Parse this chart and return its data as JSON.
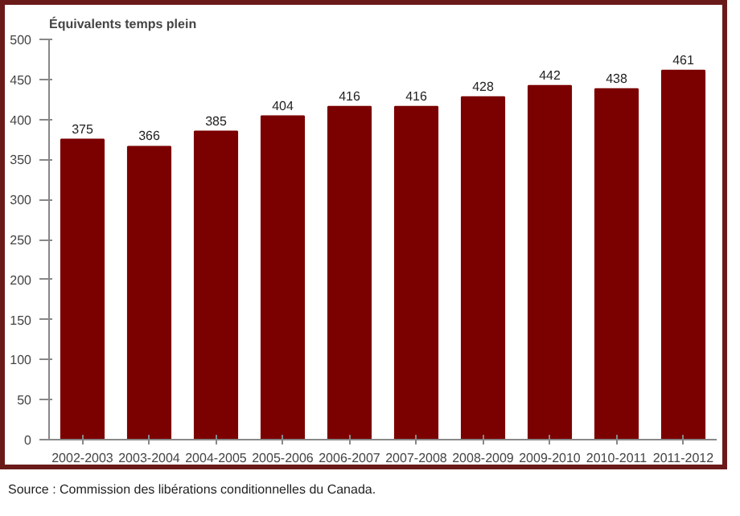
{
  "chart_data": {
    "type": "bar",
    "ylabel": "Équivalents temps plein",
    "categories": [
      "2002-2003",
      "2003-2004",
      "2004-2005",
      "2005-2006",
      "2006-2007",
      "2007-2008",
      "2008-2009",
      "2009-2010",
      "2010-2011",
      "2011-2012"
    ],
    "values": [
      375,
      366,
      385,
      404,
      416,
      416,
      428,
      442,
      438,
      461
    ],
    "color": "#7b0000",
    "ylim": [
      0,
      500
    ],
    "yticks": [
      0,
      50,
      100,
      150,
      200,
      250,
      300,
      350,
      400,
      450,
      500
    ],
    "data_labels": true,
    "grid": false,
    "annotations": [
      "Source : Commission des libérations conditionnelles du Canada."
    ]
  }
}
